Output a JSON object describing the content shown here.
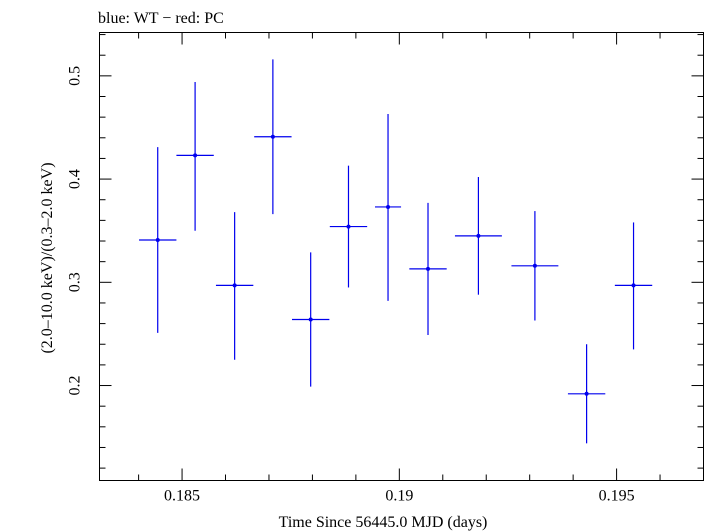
{
  "chart_data": {
    "type": "scatter",
    "title": "blue: WT − red: PC",
    "xlabel": "Time Since 56445.0 MJD (days)",
    "ylabel": "(2.0–10.0 keV)/(0.3–2.0 keV)",
    "xlim": [
      0.1831,
      0.197
    ],
    "ylim": [
      0.108,
      0.542
    ],
    "x_ticks": [
      {
        "value": 0.185,
        "label": "0.185"
      },
      {
        "value": 0.19,
        "label": "0.19"
      },
      {
        "value": 0.195,
        "label": "0.195"
      }
    ],
    "y_ticks": [
      {
        "value": 0.2,
        "label": "0.2"
      },
      {
        "value": 0.3,
        "label": "0.3"
      },
      {
        "value": 0.4,
        "label": "0.4"
      },
      {
        "value": 0.5,
        "label": "0.5"
      }
    ],
    "x_minor_step": 0.001,
    "y_minor_step": 0.02,
    "grid": false,
    "series": [
      {
        "name": "WT",
        "color": "#0000ee",
        "points": [
          {
            "x": 0.18444,
            "xerr": 0.00043,
            "y": 0.341,
            "ylo": 0.251,
            "yhi": 0.431
          },
          {
            "x": 0.1853,
            "xerr": 0.00043,
            "y": 0.423,
            "ylo": 0.35,
            "yhi": 0.494
          },
          {
            "x": 0.18621,
            "xerr": 0.00043,
            "y": 0.297,
            "ylo": 0.225,
            "yhi": 0.368
          },
          {
            "x": 0.18709,
            "xerr": 0.00043,
            "y": 0.441,
            "ylo": 0.366,
            "yhi": 0.516
          },
          {
            "x": 0.18796,
            "xerr": 0.00043,
            "y": 0.264,
            "ylo": 0.199,
            "yhi": 0.329
          },
          {
            "x": 0.18883,
            "xerr": 0.00043,
            "y": 0.354,
            "ylo": 0.295,
            "yhi": 0.413
          },
          {
            "x": 0.18974,
            "xerr": 0.0003,
            "y": 0.373,
            "ylo": 0.282,
            "yhi": 0.463
          },
          {
            "x": 0.19066,
            "xerr": 0.00043,
            "y": 0.313,
            "ylo": 0.249,
            "yhi": 0.377
          },
          {
            "x": 0.19182,
            "xerr": 0.00054,
            "y": 0.345,
            "ylo": 0.288,
            "yhi": 0.402
          },
          {
            "x": 0.19312,
            "xerr": 0.00054,
            "y": 0.316,
            "ylo": 0.263,
            "yhi": 0.369
          },
          {
            "x": 0.19431,
            "xerr": 0.00043,
            "y": 0.192,
            "ylo": 0.144,
            "yhi": 0.24
          },
          {
            "x": 0.19539,
            "xerr": 0.00043,
            "y": 0.297,
            "ylo": 0.235,
            "yhi": 0.358
          }
        ]
      }
    ]
  }
}
